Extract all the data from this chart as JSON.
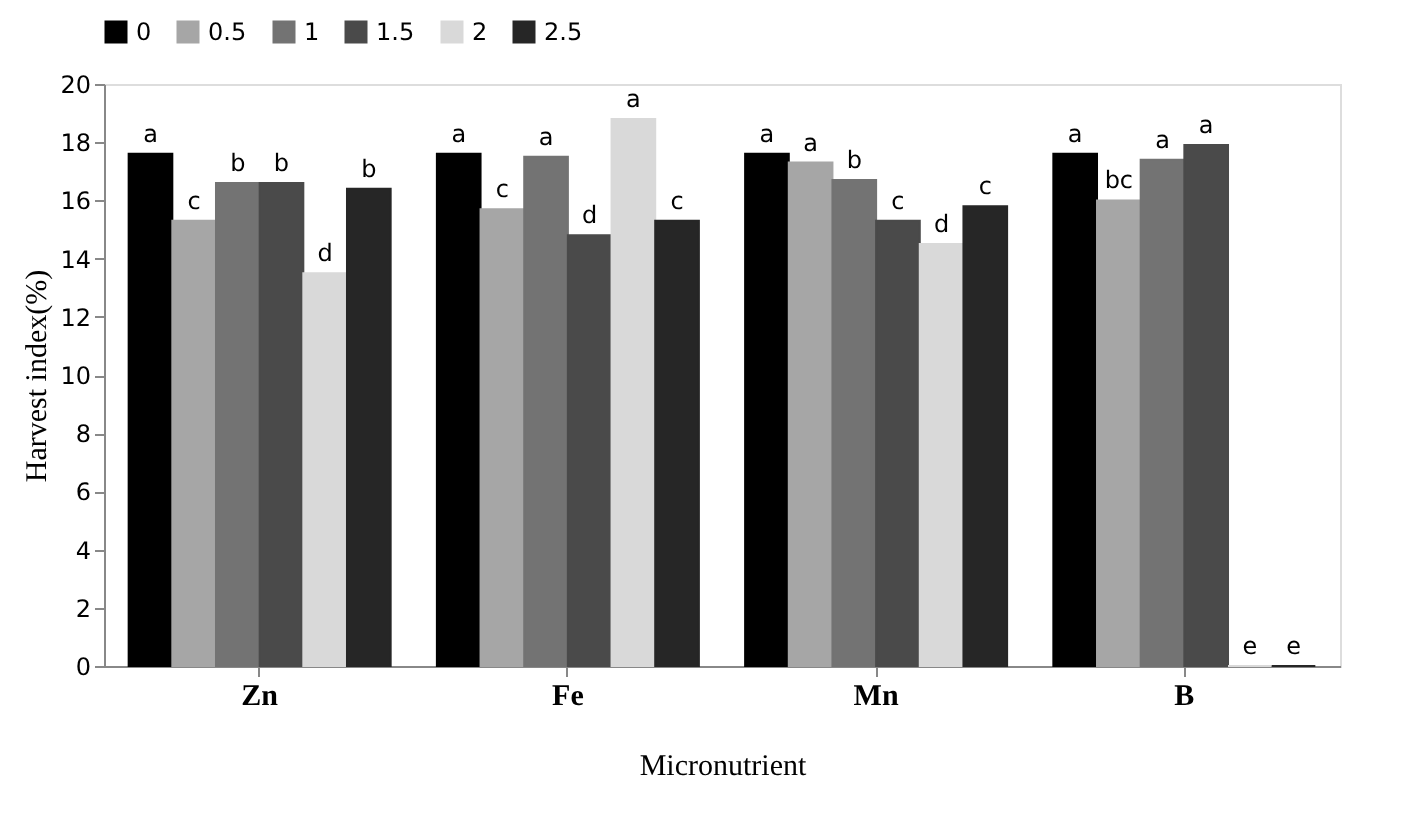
{
  "chart_data": {
    "type": "bar",
    "xlabel": "Micronutrient",
    "ylabel": "Harvest index(%)",
    "categories": [
      "Zn",
      "Fe",
      "Mn",
      "B"
    ],
    "series": [
      {
        "name": "0",
        "color": "#000000",
        "values": [
          17.6,
          17.6,
          17.6,
          17.6
        ],
        "value_labels": [
          "a",
          "a",
          "a",
          "a"
        ]
      },
      {
        "name": "0.5",
        "color": "#a6a6a6",
        "values": [
          15.3,
          15.7,
          17.3,
          16.0
        ],
        "value_labels": [
          "c",
          "c",
          "a",
          "bc"
        ]
      },
      {
        "name": "1",
        "color": "#737373",
        "values": [
          16.6,
          17.5,
          16.7,
          17.4
        ],
        "value_labels": [
          "b",
          "a",
          "b",
          "a"
        ]
      },
      {
        "name": "1.5",
        "color": "#4a4a4a",
        "values": [
          16.6,
          14.8,
          15.3,
          17.9
        ],
        "value_labels": [
          "b",
          "d",
          "c",
          "a"
        ]
      },
      {
        "name": "2",
        "color": "#d9d9d9",
        "values": [
          13.5,
          18.8,
          14.5,
          0
        ],
        "value_labels": [
          "d",
          "a",
          "d",
          "e"
        ]
      },
      {
        "name": "2.5",
        "color": "#262626",
        "values": [
          16.4,
          15.3,
          15.8,
          0
        ],
        "value_labels": [
          "b",
          "c",
          "c",
          "e"
        ]
      }
    ],
    "ylim": [
      0,
      20
    ],
    "yticks": [
      0,
      2,
      4,
      6,
      8,
      10,
      12,
      14,
      16,
      18,
      20
    ],
    "grid": false,
    "legend": "top"
  }
}
